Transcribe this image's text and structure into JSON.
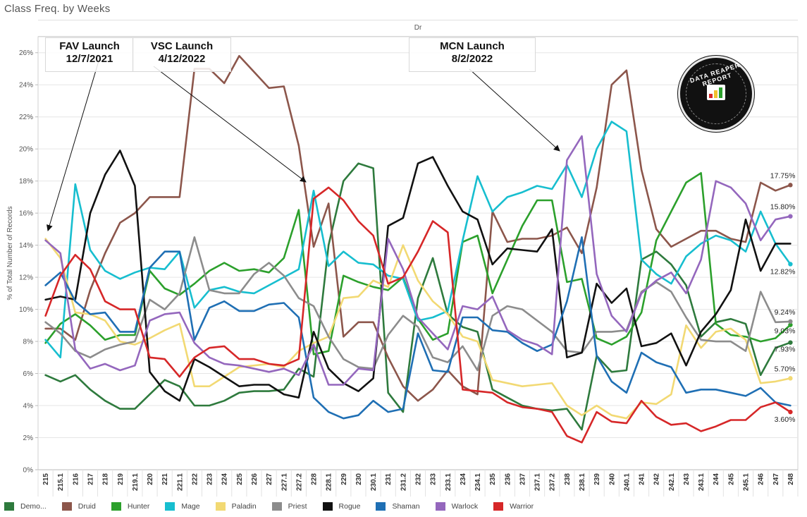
{
  "title": "Class Freq. by Weeks",
  "header_label": "Dr",
  "ylabel": "% of Total Number of Records",
  "annotations": [
    {
      "name": "fav",
      "line1": "FAV Launch",
      "line2": "12/7/2021"
    },
    {
      "name": "vsc",
      "line1": "VSC Launch",
      "line2": "4/12/2022"
    },
    {
      "name": "mcn",
      "line1": "MCN Launch",
      "line2": "8/2/2022"
    }
  ],
  "logo_text": "DATA REAPER REPORT",
  "chart_data": {
    "type": "line",
    "title": "Class Freq. by Weeks",
    "xlabel": "",
    "ylabel": "% of Total Number of Records",
    "ylim": [
      0,
      27
    ],
    "yticks": [
      0,
      2,
      4,
      6,
      8,
      10,
      12,
      14,
      16,
      18,
      20,
      22,
      24,
      26
    ],
    "grid": true,
    "legend_position": "bottom",
    "categories": [
      "215",
      "215.1",
      "216",
      "217",
      "218",
      "219",
      "219.1",
      "220",
      "221",
      "221.1",
      "222",
      "223",
      "224",
      "225",
      "226",
      "227",
      "227.1",
      "227.2",
      "228",
      "228.1",
      "229",
      "230",
      "230.1",
      "231",
      "231.2",
      "232",
      "233",
      "233.1",
      "234",
      "234.1",
      "235",
      "236",
      "237",
      "237.1",
      "237.2",
      "238",
      "238.1",
      "239",
      "240",
      "240.1",
      "241",
      "242",
      "242.1",
      "243",
      "243.1",
      "244",
      "245",
      "245.1",
      "246",
      "247",
      "248"
    ],
    "series": [
      {
        "name": "Demo...",
        "color": "#2e7a3d",
        "end_label": "7.93%",
        "values": [
          5.9,
          5.5,
          5.9,
          5.0,
          4.3,
          3.8,
          3.8,
          4.7,
          5.6,
          5.2,
          4.0,
          4.0,
          4.3,
          4.8,
          4.9,
          4.9,
          5.0,
          6.3,
          5.8,
          14.0,
          18.0,
          19.1,
          18.8,
          4.8,
          3.6,
          10.7,
          13.2,
          9.7,
          8.9,
          8.6,
          5.0,
          4.5,
          4.0,
          3.8,
          3.7,
          3.8,
          2.5,
          7.1,
          6.1,
          6.2,
          13.1,
          13.6,
          12.8,
          11.5,
          8.3,
          9.2,
          9.4,
          9.1,
          5.9,
          7.6,
          7.93
        ]
      },
      {
        "name": "Druid",
        "color": "#8c564b",
        "end_label": "17.75%",
        "values": [
          8.8,
          8.8,
          8.1,
          11.2,
          13.5,
          15.4,
          16.0,
          17.0,
          17.0,
          17.0,
          25.0,
          25.0,
          24.1,
          25.8,
          24.8,
          23.8,
          23.9,
          20.2,
          13.9,
          16.6,
          8.3,
          9.2,
          9.2,
          7.0,
          5.2,
          4.3,
          5.0,
          6.2,
          5.2,
          4.7,
          16.1,
          14.2,
          14.4,
          14.4,
          14.6,
          15.1,
          13.5,
          17.6,
          24.0,
          24.9,
          18.7,
          15.0,
          13.9,
          14.4,
          14.9,
          14.9,
          14.4,
          14.2,
          17.9,
          17.4,
          17.75
        ]
      },
      {
        "name": "Hunter",
        "color": "#2ca02c",
        "end_label": "9.03%",
        "values": [
          7.9,
          9.1,
          9.7,
          9.0,
          8.1,
          8.4,
          8.4,
          12.4,
          11.3,
          10.9,
          11.6,
          12.4,
          12.9,
          12.4,
          12.5,
          12.3,
          13.2,
          16.2,
          7.2,
          7.4,
          12.1,
          11.7,
          11.4,
          11.2,
          12.0,
          9.4,
          8.1,
          8.5,
          14.2,
          14.6,
          11.0,
          13.1,
          15.2,
          16.8,
          16.8,
          11.7,
          11.9,
          8.2,
          7.8,
          8.3,
          9.8,
          14.3,
          16.1,
          17.9,
          18.5,
          9.1,
          8.4,
          8.3,
          8.0,
          8.2,
          9.03
        ]
      },
      {
        "name": "Mage",
        "color": "#17becf",
        "end_label": "12.82%",
        "values": [
          8.1,
          7.0,
          17.8,
          13.7,
          12.4,
          11.9,
          12.3,
          12.6,
          12.5,
          13.6,
          10.1,
          11.2,
          11.4,
          11.1,
          11.0,
          11.5,
          12.0,
          12.5,
          17.4,
          12.7,
          13.6,
          12.9,
          12.8,
          12.1,
          11.9,
          9.3,
          9.5,
          9.9,
          14.3,
          18.3,
          16.1,
          17.0,
          17.3,
          17.7,
          17.5,
          19.0,
          17.0,
          20.0,
          21.7,
          21.1,
          13.1,
          12.2,
          11.6,
          13.3,
          14.1,
          14.6,
          14.3,
          13.6,
          16.1,
          14.1,
          12.82
        ]
      },
      {
        "name": "Paladin",
        "color": "#f2d973",
        "end_label": "5.70%",
        "values": [
          14.4,
          13.2,
          9.8,
          9.7,
          9.3,
          8.0,
          7.8,
          8.2,
          8.7,
          9.1,
          5.2,
          5.2,
          5.8,
          6.4,
          6.5,
          6.6,
          6.4,
          7.4,
          7.9,
          8.3,
          10.7,
          10.8,
          11.8,
          11.4,
          14.0,
          11.8,
          10.5,
          9.7,
          8.3,
          8.0,
          5.6,
          5.4,
          5.2,
          5.3,
          5.4,
          4.0,
          3.4,
          4.0,
          3.4,
          3.2,
          4.2,
          4.1,
          4.7,
          9.0,
          7.6,
          8.6,
          8.8,
          8.1,
          5.4,
          5.5,
          5.7
        ]
      },
      {
        "name": "Priest",
        "color": "#8c8c8c",
        "end_label": "9.24%",
        "values": [
          9.2,
          8.5,
          7.4,
          7.0,
          7.5,
          7.8,
          8.0,
          10.6,
          10.0,
          11.0,
          14.5,
          11.2,
          11.0,
          11.0,
          12.2,
          12.9,
          12.1,
          10.7,
          10.2,
          8.3,
          6.9,
          6.4,
          6.3,
          8.4,
          9.6,
          8.9,
          7.0,
          6.7,
          7.7,
          6.2,
          9.6,
          10.2,
          10.0,
          9.3,
          8.6,
          7.4,
          7.3,
          8.6,
          8.6,
          8.7,
          11.1,
          11.7,
          11.1,
          9.5,
          8.1,
          8.0,
          8.0,
          7.4,
          11.1,
          9.2,
          9.24
        ]
      },
      {
        "name": "Rogue",
        "color": "#111111",
        "end_label": "",
        "values": [
          10.6,
          10.8,
          10.6,
          16.0,
          18.4,
          19.9,
          17.7,
          6.1,
          4.9,
          4.3,
          6.9,
          6.4,
          5.8,
          5.2,
          5.3,
          5.3,
          4.7,
          4.5,
          8.6,
          6.3,
          5.4,
          4.9,
          5.7,
          15.2,
          15.7,
          19.1,
          19.5,
          17.7,
          16.1,
          15.6,
          12.8,
          13.8,
          13.7,
          13.6,
          15.0,
          7.0,
          7.3,
          11.6,
          10.4,
          11.3,
          7.7,
          7.9,
          8.5,
          6.5,
          8.6,
          9.7,
          11.2,
          15.6,
          12.4,
          14.1,
          14.1
        ]
      },
      {
        "name": "Shaman",
        "color": "#1f6fb4",
        "end_label": "",
        "values": [
          11.5,
          12.3,
          10.5,
          9.7,
          9.8,
          8.6,
          8.6,
          12.6,
          13.6,
          13.6,
          8.1,
          10.1,
          10.5,
          9.9,
          9.9,
          10.3,
          10.4,
          9.5,
          4.5,
          3.6,
          3.2,
          3.4,
          4.3,
          3.6,
          3.8,
          8.5,
          6.2,
          6.1,
          9.5,
          9.5,
          8.7,
          8.6,
          7.9,
          7.4,
          7.8,
          10.5,
          14.5,
          7.1,
          5.5,
          4.8,
          7.3,
          6.7,
          6.4,
          4.8,
          5.0,
          5.0,
          4.8,
          4.6,
          5.1,
          4.2,
          4.0
        ]
      },
      {
        "name": "Warlock",
        "color": "#9467bd",
        "end_label": "15.80%",
        "values": [
          14.3,
          13.5,
          7.5,
          6.3,
          6.6,
          6.2,
          6.5,
          9.3,
          9.7,
          9.8,
          7.9,
          7.0,
          6.6,
          6.5,
          6.3,
          6.1,
          6.3,
          5.9,
          7.8,
          5.3,
          5.3,
          6.3,
          6.2,
          14.4,
          12.5,
          9.5,
          8.5,
          7.5,
          10.2,
          10.0,
          10.8,
          8.7,
          8.1,
          7.8,
          7.2,
          19.3,
          20.8,
          12.2,
          9.6,
          8.6,
          11.0,
          11.8,
          12.3,
          11.0,
          13.1,
          18.0,
          17.6,
          16.6,
          14.3,
          15.6,
          15.8
        ]
      },
      {
        "name": "Warrior",
        "color": "#d62728",
        "end_label": "3.60%",
        "values": [
          9.6,
          12.1,
          13.4,
          12.5,
          10.5,
          10.0,
          10.0,
          7.0,
          6.9,
          5.8,
          7.0,
          7.6,
          7.7,
          6.9,
          6.9,
          6.6,
          6.5,
          6.9,
          16.9,
          17.6,
          16.8,
          15.5,
          14.6,
          11.6,
          12.0,
          13.6,
          15.5,
          14.8,
          5.0,
          4.9,
          4.8,
          4.2,
          3.9,
          3.8,
          3.6,
          2.1,
          1.7,
          3.6,
          3.0,
          2.9,
          4.3,
          3.3,
          2.8,
          2.9,
          2.4,
          2.7,
          3.1,
          3.1,
          3.9,
          4.2,
          3.6
        ]
      }
    ]
  }
}
